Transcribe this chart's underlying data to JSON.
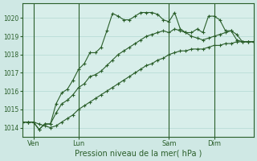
{
  "background_color": "#cfe8e4",
  "plot_bg_color": "#d8eeea",
  "grid_color": "#a8d4cc",
  "line_color": "#2a5e2a",
  "xlabel": "Pression niveau de la mer( hPa )",
  "ylim": [
    1013.5,
    1020.8
  ],
  "yticks": [
    1014,
    1015,
    1016,
    1017,
    1018,
    1019,
    1020
  ],
  "day_labels": [
    "Ven",
    "Lun",
    "Sam",
    "Dim"
  ],
  "day_positions": [
    2,
    10,
    26,
    34
  ],
  "total_points": 42,
  "line1": [
    1014.3,
    1014.3,
    1014.3,
    1013.9,
    1014.2,
    1014.2,
    1015.3,
    1015.9,
    1016.1,
    1016.6,
    1017.2,
    1017.5,
    1018.1,
    1018.1,
    1018.4,
    1019.3,
    1020.25,
    1020.1,
    1019.9,
    1019.9,
    1020.1,
    1020.3,
    1020.3,
    1020.3,
    1020.2,
    1019.9,
    1019.8,
    1020.3,
    1019.4,
    1019.2,
    1019.2,
    1019.4,
    1019.2,
    1020.1,
    1020.1,
    1019.9,
    1019.3,
    1019.3,
    1018.8,
    1018.7,
    1018.7,
    1018.7
  ],
  "line2": [
    1014.3,
    1014.3,
    1014.3,
    1013.9,
    1014.2,
    1014.2,
    1014.8,
    1015.3,
    1015.5,
    1015.8,
    1016.2,
    1016.4,
    1016.8,
    1016.9,
    1017.1,
    1017.4,
    1017.7,
    1018.0,
    1018.2,
    1018.4,
    1018.6,
    1018.8,
    1019.0,
    1019.1,
    1019.2,
    1019.3,
    1019.2,
    1019.4,
    1019.3,
    1019.2,
    1019.0,
    1018.9,
    1018.8,
    1018.9,
    1019.0,
    1019.1,
    1019.2,
    1019.3,
    1019.1,
    1018.7,
    1018.7,
    1018.7
  ],
  "line3": [
    1014.3,
    1014.3,
    1014.3,
    1014.2,
    1014.1,
    1014.0,
    1014.1,
    1014.3,
    1014.5,
    1014.7,
    1015.0,
    1015.2,
    1015.4,
    1015.6,
    1015.8,
    1016.0,
    1016.2,
    1016.4,
    1016.6,
    1016.8,
    1017.0,
    1017.2,
    1017.4,
    1017.5,
    1017.7,
    1017.8,
    1018.0,
    1018.1,
    1018.2,
    1018.2,
    1018.3,
    1018.3,
    1018.3,
    1018.4,
    1018.5,
    1018.5,
    1018.6,
    1018.6,
    1018.7,
    1018.7,
    1018.7,
    1018.7
  ]
}
